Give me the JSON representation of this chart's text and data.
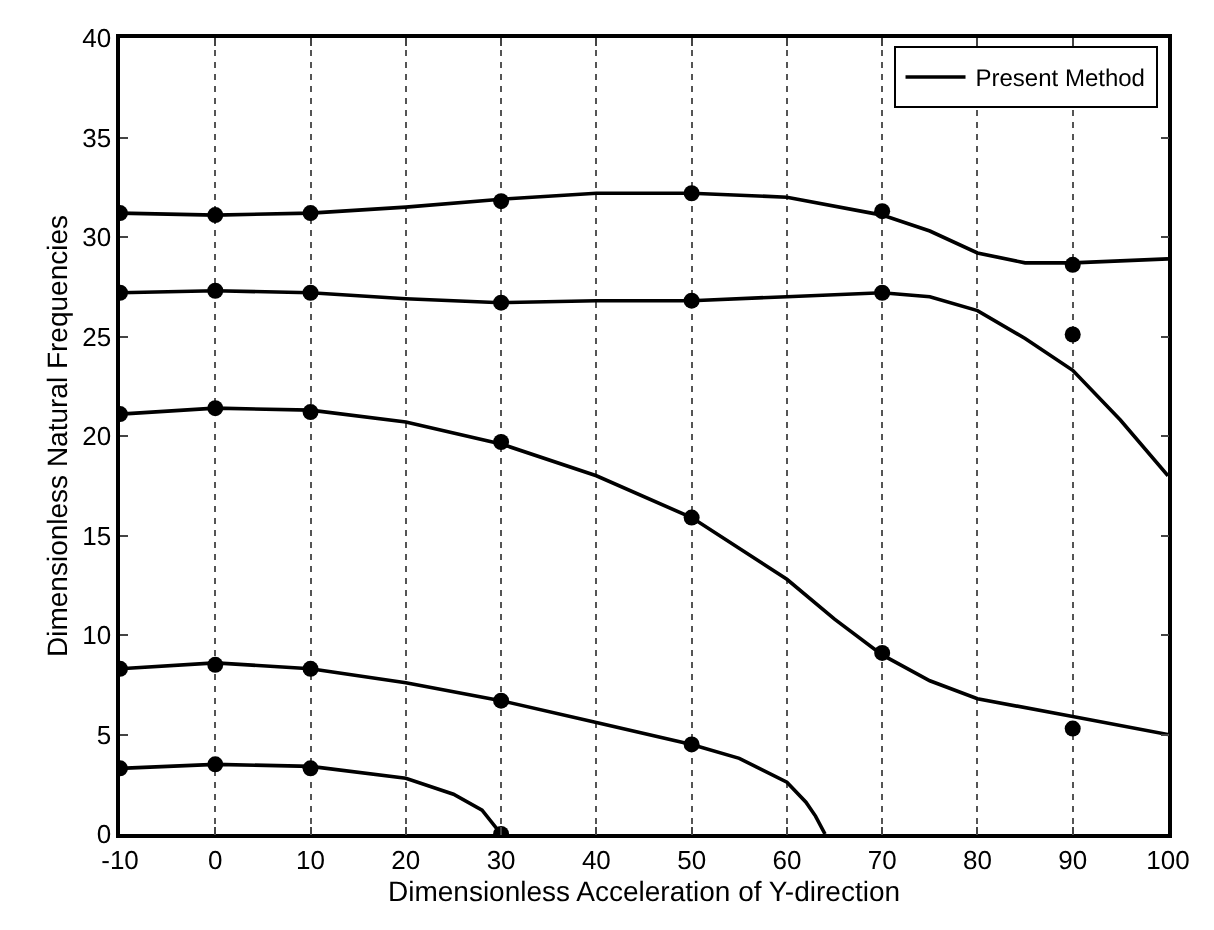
{
  "chart_data": {
    "type": "line",
    "xlabel": "Dimensionless Acceleration of Y-direction",
    "ylabel": "Dimensionless Natural Frequencies",
    "xlim": [
      -10,
      100
    ],
    "xticks": [
      -10,
      0,
      10,
      20,
      30,
      40,
      50,
      60,
      70,
      80,
      90,
      100
    ],
    "ylim": [
      0,
      40
    ],
    "yticks": [
      0,
      5,
      10,
      15,
      20,
      25,
      30,
      35,
      40
    ],
    "grid": "x",
    "legend": "top right",
    "line_style": "solid",
    "series": [
      {
        "type": "scatter",
        "marker": "circle",
        "color": "#000000",
        "x": [
          -10,
          0,
          10,
          30,
          50,
          70,
          90,
          -10,
          0,
          10,
          30,
          50,
          70,
          90,
          -10,
          0,
          10,
          30,
          50,
          70,
          90,
          -10,
          0,
          10,
          30,
          50,
          -10,
          0,
          10,
          30
        ],
        "values": [
          31.2,
          31.1,
          31.2,
          31.8,
          32.2,
          31.3,
          28.6,
          27.2,
          27.3,
          27.2,
          26.7,
          26.8,
          27.2,
          25.1,
          21.1,
          21.4,
          21.2,
          19.7,
          15.9,
          9.1,
          5.3,
          8.3,
          8.5,
          8.3,
          6.7,
          4.5,
          3.3,
          3.5,
          3.3,
          0
        ]
      },
      {
        "name": "Present Method",
        "color": "#000000",
        "x": [
          -10,
          0,
          10,
          20,
          30,
          40,
          50,
          60,
          70,
          75,
          80,
          85,
          90,
          100
        ],
        "values": [
          31.2,
          31.1,
          31.2,
          31.5,
          31.9,
          32.2,
          32.2,
          32.0,
          31.1,
          30.3,
          29.2,
          28.7,
          28.7,
          28.9
        ]
      },
      {
        "color": "#000000",
        "x": [
          -10,
          0,
          10,
          20,
          30,
          40,
          50,
          60,
          70,
          75,
          80,
          85,
          90,
          95,
          100
        ],
        "values": [
          27.2,
          27.3,
          27.2,
          26.9,
          26.7,
          26.8,
          26.8,
          27.0,
          27.2,
          27.0,
          26.3,
          24.9,
          23.3,
          20.8,
          18.0
        ]
      },
      {
        "color": "#000000",
        "x": [
          -10,
          0,
          10,
          20,
          30,
          40,
          50,
          60,
          65,
          70,
          75,
          80,
          90,
          100
        ],
        "values": [
          21.1,
          21.4,
          21.3,
          20.7,
          19.6,
          18.0,
          15.9,
          12.8,
          10.8,
          9.0,
          7.7,
          6.8,
          5.9,
          5.0
        ]
      },
      {
        "color": "#000000",
        "x": [
          -10,
          0,
          10,
          20,
          30,
          40,
          50,
          55,
          60,
          62,
          63,
          64
        ],
        "values": [
          8.3,
          8.6,
          8.3,
          7.6,
          6.7,
          5.6,
          4.5,
          3.8,
          2.6,
          1.6,
          0.9,
          0
        ]
      },
      {
        "color": "#000000",
        "x": [
          -10,
          0,
          10,
          20,
          25,
          28,
          30
        ],
        "values": [
          3.3,
          3.5,
          3.4,
          2.8,
          2.0,
          1.2,
          0
        ]
      }
    ]
  }
}
